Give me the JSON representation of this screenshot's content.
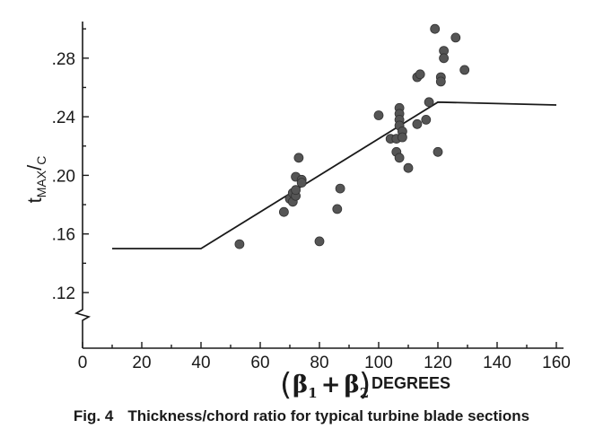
{
  "caption": {
    "figure_number": "Fig. 4",
    "text": "Thickness/chord ratio for typical turbine blade sections"
  },
  "chart_data": {
    "type": "scatter",
    "title": "",
    "ylabel": {
      "main": "t",
      "subscript": "MAX",
      "slash": "/",
      "denominator": "C"
    },
    "xlabel": {
      "open_paren": "(",
      "beta1": "β",
      "beta1_sub": "1",
      "plus": "+",
      "beta2": "β",
      "beta2_sub": "2",
      "close_paren": ")",
      "units": "DEGREES"
    },
    "xlim": [
      0,
      160
    ],
    "ylim": [
      0.08,
      0.3
    ],
    "x_ticks": [
      0,
      20,
      40,
      60,
      80,
      100,
      120,
      140,
      160
    ],
    "x_tick_labels": [
      "0",
      "20",
      "40",
      "60",
      "80",
      "100",
      "120",
      "140",
      "160"
    ],
    "y_ticks": [
      0.12,
      0.16,
      0.2,
      0.24,
      0.28
    ],
    "y_tick_labels": [
      ".12",
      ".16",
      ".20",
      ".24",
      ".28"
    ],
    "axis_break": "y-axis below .12",
    "grid": false,
    "trend_line": [
      [
        10,
        0.15
      ],
      [
        40,
        0.15
      ],
      [
        120,
        0.25
      ],
      [
        160,
        0.248
      ]
    ],
    "points": [
      [
        53,
        0.153
      ],
      [
        68,
        0.175
      ],
      [
        70,
        0.184
      ],
      [
        71,
        0.182
      ],
      [
        71,
        0.188
      ],
      [
        72,
        0.186
      ],
      [
        72,
        0.19
      ],
      [
        72,
        0.199
      ],
      [
        73,
        0.212
      ],
      [
        74,
        0.197
      ],
      [
        74,
        0.195
      ],
      [
        80,
        0.155
      ],
      [
        86,
        0.177
      ],
      [
        87,
        0.191
      ],
      [
        100,
        0.241
      ],
      [
        104,
        0.225
      ],
      [
        106,
        0.216
      ],
      [
        106,
        0.225
      ],
      [
        107,
        0.246
      ],
      [
        107,
        0.242
      ],
      [
        107,
        0.238
      ],
      [
        107,
        0.234
      ],
      [
        107,
        0.212
      ],
      [
        108,
        0.23
      ],
      [
        108,
        0.226
      ],
      [
        110,
        0.205
      ],
      [
        113,
        0.235
      ],
      [
        113,
        0.267
      ],
      [
        114,
        0.269
      ],
      [
        116,
        0.238
      ],
      [
        117,
        0.25
      ],
      [
        119,
        0.3
      ],
      [
        120,
        0.216
      ],
      [
        121,
        0.267
      ],
      [
        121,
        0.264
      ],
      [
        122,
        0.285
      ],
      [
        122,
        0.28
      ],
      [
        126,
        0.294
      ],
      [
        129,
        0.272
      ]
    ]
  }
}
